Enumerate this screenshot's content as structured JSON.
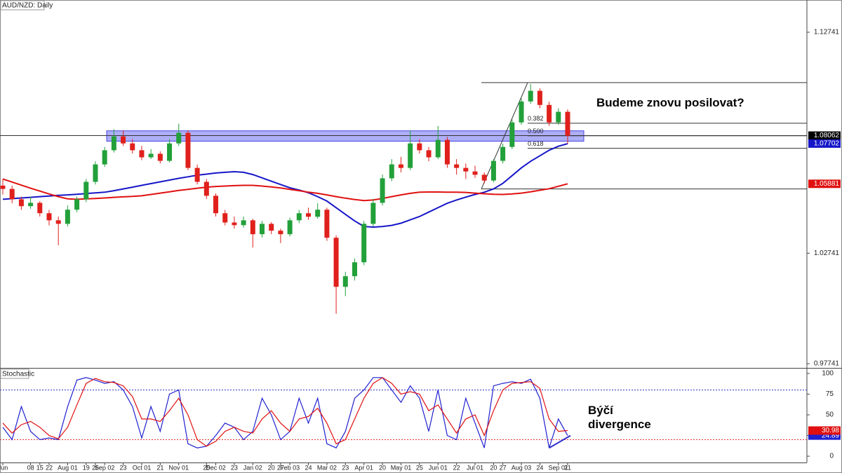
{
  "chart_data": [
    {
      "type": "candlestick",
      "title": "AUD/NZD: Daily",
      "up_color": "#22a03a",
      "down_color": "#e0201c",
      "categories": [
        "Jun",
        null,
        null,
        "08",
        "15",
        "22",
        null,
        "Aug 01",
        null,
        "19",
        "26",
        "Sep 02",
        null,
        "23",
        null,
        "Oct 01",
        null,
        "21",
        null,
        "Nov 01",
        null,
        null,
        "25",
        "Dec 02",
        null,
        "23",
        null,
        "Jan 02",
        null,
        "20",
        "27",
        "Feb 03",
        null,
        "24",
        null,
        "Mar 02",
        null,
        "23",
        null,
        "Apr 01",
        null,
        "20",
        null,
        "May 01",
        null,
        "25",
        null,
        "Jun 01",
        null,
        "22",
        null,
        "Jul 01",
        null,
        "20",
        "27",
        null,
        "Aug 03",
        null,
        "24",
        null,
        "Sep 01",
        "21"
      ],
      "ohlc": [
        [
          1.058,
          1.061,
          1.054,
          1.0565
        ],
        [
          1.0565,
          1.058,
          1.05,
          1.0518
        ],
        [
          1.0518,
          1.053,
          1.047,
          1.0487
        ],
        [
          1.0487,
          1.053,
          1.0475,
          1.0502
        ],
        [
          1.0502,
          1.051,
          1.044,
          1.0455
        ],
        [
          1.0455,
          1.047,
          1.04,
          1.0423
        ],
        [
          1.0423,
          1.044,
          1.031,
          1.0407
        ],
        [
          1.0407,
          1.049,
          1.0395,
          1.0471
        ],
        [
          1.0471,
          1.053,
          1.046,
          1.0518
        ],
        [
          1.0518,
          1.061,
          1.0505,
          1.0597
        ],
        [
          1.0597,
          1.069,
          1.0585,
          1.0676
        ],
        [
          1.0676,
          1.0755,
          1.0665,
          1.074
        ],
        [
          1.074,
          1.0835,
          1.073,
          1.0803
        ],
        [
          1.0803,
          1.083,
          1.076,
          1.0771
        ],
        [
          1.0771,
          1.079,
          1.0725,
          1.074
        ],
        [
          1.074,
          1.076,
          1.0695,
          1.0708
        ],
        [
          1.0708,
          1.0745,
          1.07,
          1.0724
        ],
        [
          1.0724,
          1.0735,
          1.068,
          1.0692
        ],
        [
          1.0692,
          1.079,
          1.0685,
          1.0771
        ],
        [
          1.0771,
          1.086,
          1.076,
          1.0819
        ],
        [
          1.0819,
          1.083,
          1.065,
          1.066
        ],
        [
          1.066,
          1.0675,
          1.0585,
          1.0597
        ],
        [
          1.0597,
          1.061,
          1.052,
          1.0534
        ],
        [
          1.0534,
          1.0545,
          1.044,
          1.0455
        ],
        [
          1.0455,
          1.047,
          1.04,
          1.0413
        ],
        [
          1.0413,
          1.044,
          1.0385,
          1.0401
        ],
        [
          1.0401,
          1.044,
          1.039,
          1.0423
        ],
        [
          1.0423,
          1.043,
          1.03,
          1.036
        ],
        [
          1.036,
          1.042,
          1.0345,
          1.0407
        ],
        [
          1.0407,
          1.0415,
          1.036,
          1.0376
        ],
        [
          1.0376,
          1.0385,
          1.032,
          1.036
        ],
        [
          1.036,
          1.0435,
          1.035,
          1.0423
        ],
        [
          1.0423,
          1.047,
          1.041,
          1.0455
        ],
        [
          1.0455,
          1.048,
          1.0425,
          1.0439
        ],
        [
          1.0439,
          1.05,
          1.043,
          1.0471
        ],
        [
          1.0471,
          1.048,
          1.033,
          1.0344
        ],
        [
          1.0344,
          1.0355,
          1.0,
          1.0122
        ],
        [
          1.0122,
          1.019,
          1.008,
          1.017
        ],
        [
          1.017,
          1.025,
          1.015,
          1.0233
        ],
        [
          1.0233,
          1.042,
          1.022,
          1.0407
        ],
        [
          1.0407,
          1.052,
          1.0395,
          1.0502
        ],
        [
          1.0502,
          1.063,
          1.049,
          1.0613
        ],
        [
          1.0613,
          1.07,
          1.06,
          1.0676
        ],
        [
          1.0676,
          1.071,
          1.064,
          1.066
        ],
        [
          1.066,
          1.083,
          1.065,
          1.0771
        ],
        [
          1.0771,
          1.079,
          1.0725,
          1.074
        ],
        [
          1.074,
          1.0755,
          1.069,
          1.0708
        ],
        [
          1.0708,
          1.085,
          1.07,
          1.0787
        ],
        [
          1.0787,
          1.08,
          1.066,
          1.0676
        ],
        [
          1.0676,
          1.07,
          1.063,
          1.066
        ],
        [
          1.066,
          1.068,
          1.061,
          1.0644
        ],
        [
          1.0644,
          1.067,
          1.0615,
          1.0629
        ],
        [
          1.0629,
          1.064,
          1.059,
          1.0603
        ],
        [
          1.0603,
          1.07,
          1.0595,
          1.0692
        ],
        [
          1.0692,
          1.077,
          1.068,
          1.0755
        ],
        [
          1.0755,
          1.088,
          1.0745,
          1.0866
        ],
        [
          1.0866,
          1.0975,
          1.0855,
          1.0961
        ],
        [
          1.0961,
          1.104,
          1.095,
          1.1009
        ],
        [
          1.1009,
          1.102,
          1.093,
          1.0945
        ],
        [
          1.0945,
          1.096,
          1.085,
          1.0866
        ],
        [
          1.0866,
          1.093,
          1.0855,
          1.0914
        ],
        [
          1.0914,
          1.0925,
          1.077,
          1.0806
        ]
      ],
      "series": [
        {
          "color": "#1616c8",
          "values": [
            1.0518,
            1.0521,
            1.0524,
            1.0527,
            1.053,
            1.0533,
            1.0536,
            1.0538,
            1.0541,
            1.0544,
            1.0547,
            1.055,
            1.0557,
            1.0565,
            1.0573,
            1.0581,
            1.0589,
            1.0597,
            1.0605,
            1.0613,
            1.062,
            1.0627,
            1.0632,
            1.0637,
            1.064,
            1.0643,
            1.064,
            1.063,
            1.0615,
            1.06,
            1.0585,
            1.057,
            1.056,
            1.0548,
            1.053,
            1.051,
            1.048,
            1.045,
            1.042,
            1.0395,
            1.0392,
            1.0395,
            1.04,
            1.041,
            1.0425,
            1.044,
            1.046,
            1.048,
            1.05,
            1.0515,
            1.0528,
            1.054,
            1.055,
            1.0565,
            1.059,
            1.0625,
            1.066,
            1.069,
            1.0715,
            1.074,
            1.0758,
            1.077
          ]
        },
        {
          "color": "#e01010",
          "values": [
            1.061,
            1.0596,
            1.0582,
            1.0568,
            1.0555,
            1.0542,
            1.053,
            1.052,
            1.0518,
            1.052,
            1.0522,
            1.0524,
            1.0527,
            1.0529,
            1.0531,
            1.0534,
            1.054,
            1.0546,
            1.0552,
            1.0558,
            1.0563,
            1.0568,
            1.0573,
            1.0576,
            1.0578,
            1.058,
            1.0581,
            1.0581,
            1.0578,
            1.0574,
            1.0569,
            1.0563,
            1.0557,
            1.055,
            1.0545,
            1.0538,
            1.053,
            1.0523,
            1.0517,
            1.0512,
            1.0515,
            1.0522,
            1.053,
            1.0538,
            1.0545,
            1.055,
            1.0551,
            1.0551,
            1.055,
            1.055,
            1.0549,
            1.0546,
            1.0543,
            1.0541,
            1.054,
            1.0542,
            1.0546,
            1.0552,
            1.0559,
            1.0566,
            1.0577,
            1.0588
          ]
        }
      ],
      "ylim": [
        0.9755,
        1.142
      ],
      "yticks": [
        0.97741,
        1.02741,
        1.12741
      ],
      "zone": [
        1.0781,
        1.0828
      ],
      "zone_color": "#6b6bf0",
      "price_line": 1.08062,
      "price_labels": [
        {
          "value": 1.08062,
          "color": "#000000"
        },
        {
          "value": 1.07702,
          "color": "#1616c8"
        },
        {
          "value": 1.05881,
          "color": "#e01010"
        }
      ],
      "fib": {
        "high": 1.1046,
        "low": 1.0565,
        "levels": [
          0.382,
          {
            "value": 0.5,
            "label": "0.500"
          },
          0.618
        ]
      },
      "annotation": "Budeme znovu posilovat?"
    },
    {
      "type": "line",
      "title": "Stochastic",
      "series": [
        {
          "color": "#2020d0",
          "values": [
            35,
            20,
            60,
            30,
            20,
            22,
            20,
            60,
            92,
            95,
            92,
            88,
            90,
            80,
            60,
            22,
            60,
            30,
            75,
            80,
            15,
            10,
            12,
            25,
            40,
            35,
            20,
            30,
            70,
            50,
            20,
            30,
            70,
            40,
            70,
            15,
            10,
            30,
            70,
            80,
            95,
            95,
            80,
            65,
            85,
            70,
            30,
            80,
            25,
            20,
            70,
            40,
            10,
            85,
            88,
            90,
            88,
            93,
            70,
            10,
            45,
            24.89
          ]
        },
        {
          "color": "#e01010",
          "values": [
            40,
            28,
            38,
            42,
            35,
            25,
            21,
            35,
            62,
            88,
            94,
            90,
            89,
            85,
            72,
            45,
            45,
            42,
            55,
            70,
            50,
            20,
            12,
            18,
            30,
            35,
            30,
            28,
            45,
            55,
            40,
            30,
            45,
            48,
            58,
            40,
            15,
            20,
            45,
            70,
            88,
            95,
            88,
            75,
            78,
            75,
            55,
            62,
            45,
            28,
            45,
            50,
            25,
            55,
            80,
            88,
            89,
            90,
            82,
            45,
            30,
            30.98
          ]
        }
      ],
      "levels": [
        {
          "value": 80,
          "color": "#3030c0"
        },
        {
          "value": 20,
          "color": "#e02020"
        }
      ],
      "ylim": [
        -7.6,
        105
      ],
      "yticks": [
        0,
        25,
        50,
        75,
        100
      ],
      "annotation": "Býčí divergence"
    }
  ]
}
